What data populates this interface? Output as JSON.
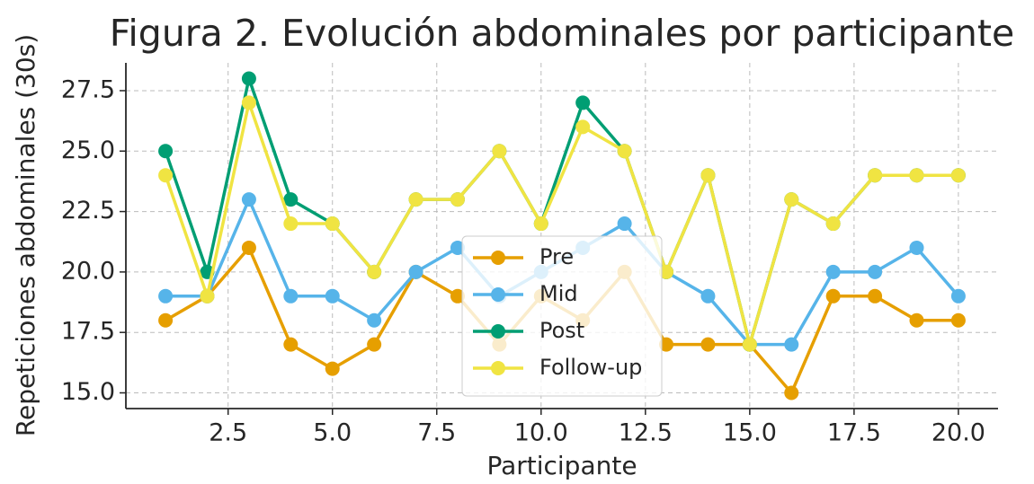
{
  "chart_data": {
    "type": "line",
    "title": "Figura 2. Evolución abdominales por participante",
    "xlabel": "Participante",
    "ylabel": "Repeticiones abdominales (30s)",
    "x": [
      1,
      2,
      3,
      4,
      5,
      6,
      7,
      8,
      9,
      10,
      11,
      12,
      13,
      14,
      15,
      16,
      17,
      18,
      19,
      20
    ],
    "series": [
      {
        "name": "Pre",
        "color": "#E69F00",
        "values": [
          18,
          19,
          21,
          17,
          16,
          17,
          20,
          19,
          17,
          19,
          18,
          20,
          17,
          17,
          17,
          15,
          19,
          19,
          18,
          18
        ]
      },
      {
        "name": "Mid",
        "color": "#56B4E9",
        "values": [
          19,
          19,
          23,
          19,
          19,
          18,
          20,
          21,
          19,
          20,
          21,
          22,
          20,
          19,
          17,
          17,
          20,
          20,
          21,
          19
        ]
      },
      {
        "name": "Post",
        "color": "#009E73",
        "values": [
          25,
          20,
          28,
          23,
          22,
          20,
          23,
          23,
          25,
          22,
          27,
          25,
          20,
          24,
          17,
          23,
          22,
          24,
          24,
          24
        ]
      },
      {
        "name": "Follow-up",
        "color": "#F0E442",
        "values": [
          24,
          19,
          27,
          22,
          22,
          20,
          23,
          23,
          25,
          22,
          26,
          25,
          20,
          24,
          17,
          23,
          22,
          24,
          24,
          24
        ]
      }
    ],
    "xlim": [
      0.05,
      20.95
    ],
    "ylim": [
      14.35,
      28.65
    ],
    "xticks": [
      2.5,
      {
        "value": 5,
        "label": "5.0"
      },
      7.5,
      {
        "value": 10,
        "label": "10.0"
      },
      12.5,
      {
        "value": 15,
        "label": "15.0"
      },
      17.5,
      {
        "value": 20,
        "label": "20.0"
      }
    ],
    "yticks": [
      {
        "value": 15,
        "label": "15.0"
      },
      17.5,
      {
        "value": 20,
        "label": "20.0"
      },
      22.5,
      {
        "value": 25,
        "label": "25.0"
      },
      27.5
    ],
    "grid": true,
    "legend": "lower center"
  }
}
